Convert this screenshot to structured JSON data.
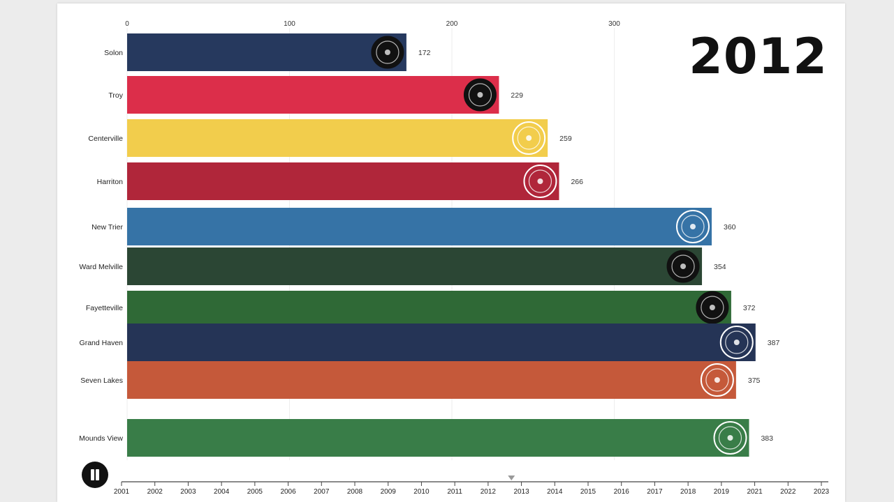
{
  "current_year": "2012",
  "chart_data": {
    "type": "bar",
    "orientation": "horizontal",
    "title": "",
    "xlabel": "",
    "ylabel": "",
    "xlim": [
      0,
      430
    ],
    "x_ticks": [
      0,
      100,
      200,
      300
    ],
    "grid": true,
    "categories": [
      "Solon",
      "Troy",
      "Centerville",
      "Harriton",
      "New Trier",
      "Ward Melville",
      "Fayetteville",
      "Grand Haven",
      "Seven Lakes",
      "Mounds View"
    ],
    "values": [
      172,
      229,
      259,
      266,
      360,
      354,
      372,
      387,
      375,
      383
    ],
    "colors": [
      "#26395e",
      "#dc2e4a",
      "#f2cd4c",
      "#b0263a",
      "#3673a6",
      "#2b4634",
      "#2f6936",
      "#253456",
      "#c5593a",
      "#397d48"
    ],
    "logo_icons": [
      "shssa-comet-logo-icon",
      "troy-science-olympiad-logo-icon",
      "centerville-seal-icon",
      "harriton-seal-icon",
      "new-trier-crest-icon",
      "ward-melville-logo-icon",
      "fm-logo-icon",
      "grand-haven-logo-icon",
      "seven-lakes-crest-icon",
      "mounds-view-mustang-icon"
    ]
  },
  "timeline": {
    "years": [
      "2001",
      "2002",
      "2003",
      "2004",
      "2005",
      "2006",
      "2007",
      "2008",
      "2009",
      "2010",
      "2011",
      "2012",
      "2013",
      "2014",
      "2015",
      "2016",
      "2017",
      "2018",
      "2019",
      "2021",
      "2022",
      "2023"
    ],
    "current_position": 2012.7
  },
  "controls": {
    "pause_icon": "pause-icon"
  }
}
